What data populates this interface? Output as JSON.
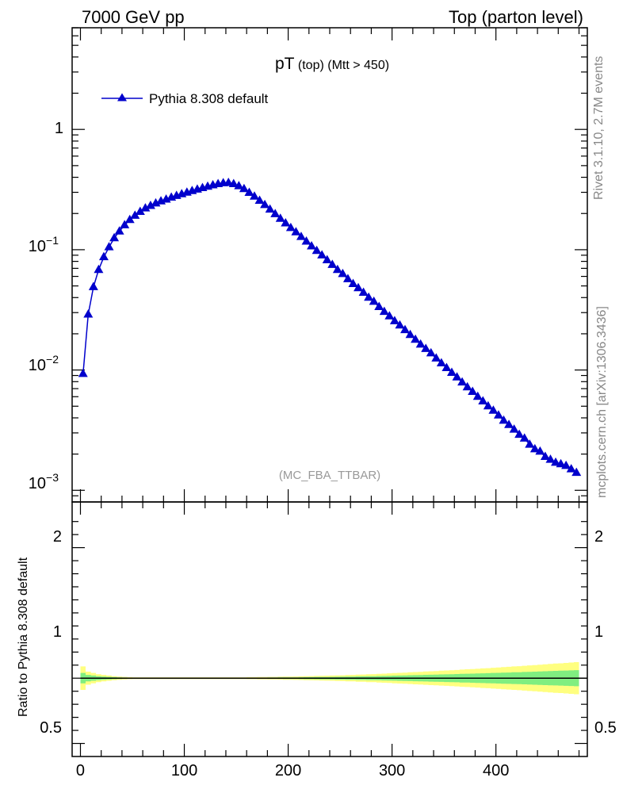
{
  "header": {
    "left": "7000 GeV pp",
    "right": "Top (parton level)"
  },
  "side": {
    "rivet": "Rivet 3.1.10,  2.7M events",
    "source": "mcplots.cern.ch [arXiv:1306.3436]"
  },
  "plot": {
    "title_main": "pT",
    "title_sub": " (top) (Mtt > 450)",
    "watermark": "(MC_FBA_TTBAR)"
  },
  "ratio_panel": {
    "ylabel": "Ratio to Pythia 8.308 default",
    "ticks": [
      "2",
      "1",
      "0.5"
    ],
    "right_ticks": [
      "2",
      "1",
      "0.5"
    ]
  },
  "main_axis": {
    "ticks": [
      "1",
      "10",
      "10",
      "10"
    ],
    "exponents": [
      "",
      "−1",
      "−2",
      "−3"
    ]
  },
  "x_axis": {
    "ticks": [
      "0",
      "100",
      "200",
      "300",
      "400"
    ]
  },
  "colors": {
    "series": "#0000cc",
    "band_outer": "#ffff80",
    "band_inner": "#80ee80"
  },
  "chart_data": {
    "type": "line",
    "title": "pT (top) (Mtt > 450)",
    "xlabel": "",
    "ylabel": "",
    "xlim": [
      -8,
      488
    ],
    "ylim": [
      0.0008,
      7
    ],
    "y_scale": "log",
    "legend_position": "top-left",
    "series": [
      {
        "name": "Pythia 8.308 default",
        "color": "#0000cc",
        "marker": "triangle",
        "x": [
          2.5,
          7.5,
          12.5,
          17.5,
          22.5,
          27.5,
          32.5,
          37.5,
          42.5,
          47.5,
          52.5,
          57.5,
          62.5,
          67.5,
          72.5,
          77.5,
          82.5,
          87.5,
          92.5,
          97.5,
          102.5,
          107.5,
          112.5,
          117.5,
          122.5,
          127.5,
          132.5,
          137.5,
          142.5,
          147.5,
          152.5,
          157.5,
          162.5,
          167.5,
          172.5,
          177.5,
          182.5,
          187.5,
          192.5,
          197.5,
          202.5,
          207.5,
          212.5,
          217.5,
          222.5,
          227.5,
          232.5,
          237.5,
          242.5,
          247.5,
          252.5,
          257.5,
          262.5,
          267.5,
          272.5,
          277.5,
          282.5,
          287.5,
          292.5,
          297.5,
          302.5,
          307.5,
          312.5,
          317.5,
          322.5,
          327.5,
          332.5,
          337.5,
          342.5,
          347.5,
          352.5,
          357.5,
          362.5,
          367.5,
          372.5,
          377.5,
          382.5,
          387.5,
          392.5,
          397.5,
          402.5,
          407.5,
          412.5,
          417.5,
          422.5,
          427.5,
          432.5,
          437.5,
          442.5,
          447.5,
          452.5,
          457.5,
          462.5,
          467.5,
          472.5,
          477.5
        ],
        "y": [
          0.0093,
          0.029,
          0.049,
          0.068,
          0.087,
          0.105,
          0.125,
          0.142,
          0.16,
          0.177,
          0.192,
          0.207,
          0.221,
          0.232,
          0.243,
          0.253,
          0.262,
          0.272,
          0.281,
          0.29,
          0.299,
          0.308,
          0.317,
          0.326,
          0.335,
          0.344,
          0.352,
          0.358,
          0.36,
          0.352,
          0.338,
          0.32,
          0.298,
          0.277,
          0.256,
          0.236,
          0.216,
          0.198,
          0.181,
          0.166,
          0.152,
          0.14,
          0.128,
          0.117,
          0.107,
          0.098,
          0.09,
          0.082,
          0.075,
          0.068,
          0.063,
          0.057,
          0.052,
          0.048,
          0.044,
          0.04,
          0.037,
          0.0335,
          0.0305,
          0.028,
          0.0255,
          0.0235,
          0.0215,
          0.0196,
          0.0179,
          0.0163,
          0.015,
          0.0138,
          0.0125,
          0.0114,
          0.0104,
          0.0095,
          0.0087,
          0.0079,
          0.0072,
          0.0066,
          0.006,
          0.0055,
          0.005,
          0.0046,
          0.0042,
          0.0038,
          0.0035,
          0.0032,
          0.0029,
          0.0027,
          0.0024,
          0.0022,
          0.0021,
          0.0019,
          0.0018,
          0.0017,
          0.00165,
          0.0016,
          0.0015,
          0.0014
        ]
      }
    ],
    "ratio": {
      "ylim": [
        0.4,
        2.35
      ],
      "reference_line": 1,
      "band_outer_halfwidth": [
        0.09,
        0.05,
        0.04,
        0.03,
        0.025,
        0.02,
        0.015,
        0.012,
        0.01,
        0.008,
        0.007,
        0.007,
        0.007,
        0.007,
        0.007,
        0.007,
        0.007,
        0.007,
        0.007,
        0.007,
        0.007,
        0.007,
        0.007,
        0.007,
        0.007,
        0.007,
        0.007,
        0.007,
        0.007,
        0.007,
        0.007,
        0.007,
        0.008,
        0.008,
        0.009,
        0.009,
        0.01,
        0.01,
        0.011,
        0.012,
        0.012,
        0.013,
        0.014,
        0.015,
        0.016,
        0.017,
        0.018,
        0.019,
        0.02,
        0.021,
        0.022,
        0.024,
        0.025,
        0.027,
        0.028,
        0.03,
        0.031,
        0.033,
        0.035,
        0.037,
        0.039,
        0.041,
        0.043,
        0.045,
        0.047,
        0.049,
        0.051,
        0.053,
        0.055,
        0.057,
        0.059,
        0.061,
        0.063,
        0.066,
        0.068,
        0.07,
        0.072,
        0.075,
        0.077,
        0.08,
        0.082,
        0.085,
        0.087,
        0.09,
        0.092,
        0.095,
        0.098,
        0.1,
        0.103,
        0.106,
        0.109,
        0.112,
        0.114,
        0.117,
        0.12,
        0.123
      ],
      "band_inner_halfwidth": [
        0.04,
        0.025,
        0.02,
        0.015,
        0.012,
        0.01,
        0.008,
        0.006,
        0.005,
        0.004,
        0.0035,
        0.0035,
        0.0035,
        0.0035,
        0.0035,
        0.0035,
        0.0035,
        0.0035,
        0.0035,
        0.0035,
        0.0035,
        0.0035,
        0.0035,
        0.0035,
        0.0035,
        0.0035,
        0.0035,
        0.0035,
        0.0035,
        0.0035,
        0.0035,
        0.0035,
        0.004,
        0.004,
        0.0045,
        0.0045,
        0.005,
        0.005,
        0.0055,
        0.006,
        0.006,
        0.0065,
        0.007,
        0.0075,
        0.008,
        0.0085,
        0.009,
        0.0095,
        0.01,
        0.0105,
        0.011,
        0.012,
        0.0125,
        0.0135,
        0.014,
        0.015,
        0.0155,
        0.0165,
        0.0175,
        0.0185,
        0.0195,
        0.0205,
        0.0215,
        0.0225,
        0.0235,
        0.0245,
        0.0255,
        0.0265,
        0.0275,
        0.0285,
        0.0295,
        0.0305,
        0.0315,
        0.033,
        0.034,
        0.035,
        0.036,
        0.0375,
        0.0385,
        0.04,
        0.041,
        0.0425,
        0.0435,
        0.045,
        0.046,
        0.0475,
        0.049,
        0.05,
        0.0515,
        0.053,
        0.0545,
        0.056,
        0.057,
        0.0585,
        0.06,
        0.0615
      ]
    }
  }
}
